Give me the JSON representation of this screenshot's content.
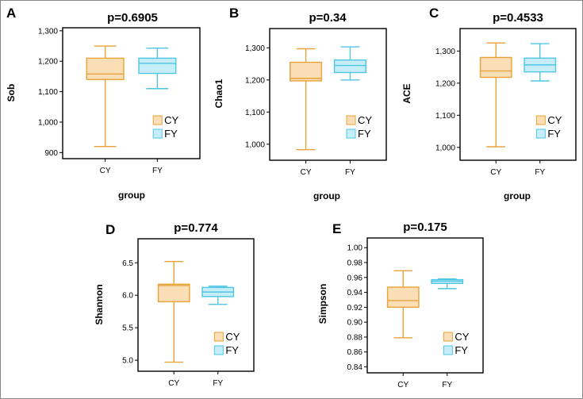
{
  "colors": {
    "CY": "#e8a33a",
    "CY_fill": "#f9deb6",
    "FY": "#4fc6e3",
    "FY_fill": "#c7eef8"
  },
  "chart_data": [
    {
      "panel": "A",
      "type": "box",
      "title": "p=0.6905",
      "ylabel": "Sob",
      "xlabel": "group",
      "ylim": [
        880,
        1310
      ],
      "yticks": [
        900,
        1000,
        1100,
        1200,
        1300
      ],
      "tick_labels": [
        "900",
        "1,000",
        "1,100",
        "1,200",
        "1,300"
      ],
      "categories": [
        "CY",
        "FY"
      ],
      "series": [
        {
          "name": "CY",
          "min": 920,
          "q1": 1140,
          "median": 1158,
          "q3": 1210,
          "max": 1250
        },
        {
          "name": "FY",
          "min": 1110,
          "q1": 1160,
          "median": 1193,
          "q3": 1210,
          "max": 1243
        }
      ],
      "legend": [
        "CY",
        "FY"
      ]
    },
    {
      "panel": "B",
      "type": "box",
      "title": "p=0.34",
      "ylabel": "Chao1",
      "xlabel": "group",
      "ylim": [
        950,
        1360
      ],
      "yticks": [
        1000,
        1100,
        1200,
        1300
      ],
      "tick_labels": [
        "1,000",
        "1,100",
        "1,200",
        "1,300"
      ],
      "categories": [
        "CY",
        "FY"
      ],
      "series": [
        {
          "name": "CY",
          "min": 983,
          "q1": 1197,
          "median": 1205,
          "q3": 1255,
          "max": 1297
        },
        {
          "name": "FY",
          "min": 1200,
          "q1": 1223,
          "median": 1245,
          "q3": 1262,
          "max": 1303
        }
      ],
      "legend": [
        "CY",
        "FY"
      ]
    },
    {
      "panel": "C",
      "type": "box",
      "title": "p=0.4533",
      "ylabel": "ACE",
      "xlabel": "group",
      "ylim": [
        960,
        1370
      ],
      "yticks": [
        1000,
        1100,
        1200,
        1300
      ],
      "tick_labels": [
        "1,000",
        "1,100",
        "1,200",
        "1,300"
      ],
      "categories": [
        "CY",
        "FY"
      ],
      "series": [
        {
          "name": "CY",
          "min": 1002,
          "q1": 1218,
          "median": 1238,
          "q3": 1280,
          "max": 1325
        },
        {
          "name": "FY",
          "min": 1207,
          "q1": 1235,
          "median": 1257,
          "q3": 1278,
          "max": 1323
        }
      ],
      "legend": [
        "CY",
        "FY"
      ]
    },
    {
      "panel": "D",
      "type": "box",
      "title": "p=0.774",
      "ylabel": "Shannon",
      "xlabel": "",
      "ylim": [
        4.83,
        6.87
      ],
      "yticks": [
        5.0,
        5.5,
        6.0,
        6.5
      ],
      "tick_labels": [
        "5.0",
        "5.5",
        "6.0",
        "6.5"
      ],
      "categories": [
        "CY",
        "FY"
      ],
      "series": [
        {
          "name": "CY",
          "min": 4.97,
          "q1": 5.9,
          "median": 6.15,
          "q3": 6.17,
          "max": 6.52
        },
        {
          "name": "FY",
          "min": 5.86,
          "q1": 5.98,
          "median": 6.05,
          "q3": 6.12,
          "max": 6.14
        }
      ],
      "legend": [
        "CY",
        "FY"
      ]
    },
    {
      "panel": "E",
      "type": "box",
      "title": "p=0.175",
      "ylabel": "Simpson",
      "xlabel": "",
      "ylim": [
        0.832,
        1.013
      ],
      "yticks": [
        0.84,
        0.86,
        0.88,
        0.9,
        0.92,
        0.94,
        0.96,
        0.98,
        1.0
      ],
      "tick_labels": [
        "0.84",
        "0.86",
        "0.88",
        "0.90",
        "0.92",
        "0.94",
        "0.96",
        "0.98",
        "1.00"
      ],
      "categories": [
        "CY",
        "FY"
      ],
      "series": [
        {
          "name": "CY",
          "min": 0.879,
          "q1": 0.92,
          "median": 0.929,
          "q3": 0.947,
          "max": 0.969
        },
        {
          "name": "FY",
          "min": 0.945,
          "q1": 0.952,
          "median": 0.955,
          "q3": 0.957,
          "max": 0.958
        }
      ],
      "legend": [
        "CY",
        "FY"
      ]
    }
  ]
}
